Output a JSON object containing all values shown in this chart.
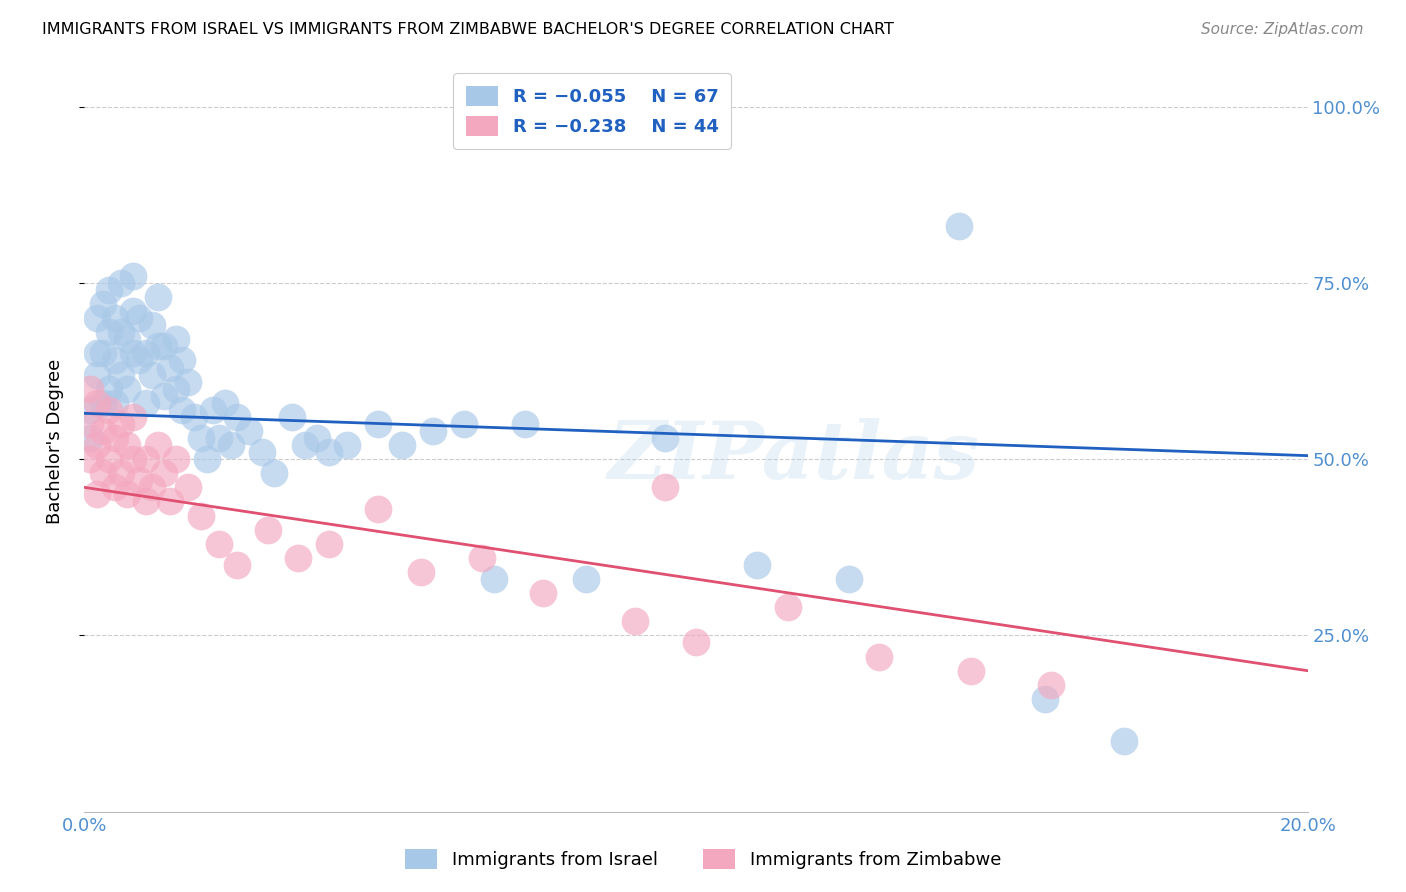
{
  "title": "IMMIGRANTS FROM ISRAEL VS IMMIGRANTS FROM ZIMBABWE BACHELOR'S DEGREE CORRELATION CHART",
  "source": "Source: ZipAtlas.com",
  "ylabel": "Bachelor's Degree",
  "ytick_labels": [
    "100.0%",
    "75.0%",
    "50.0%",
    "25.0%"
  ],
  "ytick_positions": [
    1.0,
    0.75,
    0.5,
    0.25
  ],
  "color_israel": "#a8c8e8",
  "color_zimbabwe": "#f4a8c0",
  "line_color_israel": "#2060c0",
  "line_color_zimbabwe": "#e05070",
  "legend_text_color": "#2060c0",
  "axis_tick_color": "#5090d0",
  "watermark": "ZIPatlas",
  "israel_x": [
    0.001,
    0.001,
    0.002,
    0.002,
    0.002,
    0.003,
    0.003,
    0.003,
    0.004,
    0.004,
    0.004,
    0.005,
    0.005,
    0.005,
    0.006,
    0.006,
    0.006,
    0.007,
    0.007,
    0.008,
    0.008,
    0.008,
    0.009,
    0.009,
    0.01,
    0.01,
    0.011,
    0.011,
    0.012,
    0.012,
    0.013,
    0.013,
    0.014,
    0.015,
    0.015,
    0.016,
    0.016,
    0.017,
    0.018,
    0.019,
    0.02,
    0.021,
    0.022,
    0.023,
    0.024,
    0.025,
    0.027,
    0.029,
    0.031,
    0.034,
    0.036,
    0.038,
    0.04,
    0.043,
    0.048,
    0.052,
    0.057,
    0.062,
    0.067,
    0.072,
    0.082,
    0.095,
    0.11,
    0.125,
    0.143,
    0.157,
    0.17
  ],
  "israel_y": [
    0.53,
    0.57,
    0.62,
    0.65,
    0.7,
    0.58,
    0.65,
    0.72,
    0.6,
    0.68,
    0.74,
    0.58,
    0.64,
    0.7,
    0.62,
    0.68,
    0.75,
    0.6,
    0.67,
    0.65,
    0.71,
    0.76,
    0.64,
    0.7,
    0.58,
    0.65,
    0.62,
    0.69,
    0.66,
    0.73,
    0.59,
    0.66,
    0.63,
    0.6,
    0.67,
    0.57,
    0.64,
    0.61,
    0.56,
    0.53,
    0.5,
    0.57,
    0.53,
    0.58,
    0.52,
    0.56,
    0.54,
    0.51,
    0.48,
    0.56,
    0.52,
    0.53,
    0.51,
    0.52,
    0.55,
    0.52,
    0.54,
    0.55,
    0.33,
    0.55,
    0.33,
    0.53,
    0.35,
    0.33,
    0.83,
    0.16,
    0.1
  ],
  "zimbabwe_x": [
    0.001,
    0.001,
    0.001,
    0.002,
    0.002,
    0.002,
    0.003,
    0.003,
    0.004,
    0.004,
    0.005,
    0.005,
    0.006,
    0.006,
    0.007,
    0.007,
    0.008,
    0.008,
    0.009,
    0.01,
    0.01,
    0.011,
    0.012,
    0.013,
    0.014,
    0.015,
    0.017,
    0.019,
    0.022,
    0.025,
    0.03,
    0.035,
    0.04,
    0.048,
    0.055,
    0.065,
    0.075,
    0.09,
    0.095,
    0.1,
    0.115,
    0.13,
    0.145,
    0.158
  ],
  "zimbabwe_y": [
    0.5,
    0.55,
    0.6,
    0.45,
    0.52,
    0.58,
    0.48,
    0.54,
    0.5,
    0.57,
    0.46,
    0.53,
    0.48,
    0.55,
    0.45,
    0.52,
    0.5,
    0.56,
    0.47,
    0.44,
    0.5,
    0.46,
    0.52,
    0.48,
    0.44,
    0.5,
    0.46,
    0.42,
    0.38,
    0.35,
    0.4,
    0.36,
    0.38,
    0.43,
    0.34,
    0.36,
    0.31,
    0.27,
    0.46,
    0.24,
    0.29,
    0.22,
    0.2,
    0.18
  ],
  "xlim": [
    0.0,
    0.2
  ],
  "ylim": [
    0.0,
    1.05
  ],
  "figsize": [
    14.06,
    8.92
  ],
  "dpi": 100
}
